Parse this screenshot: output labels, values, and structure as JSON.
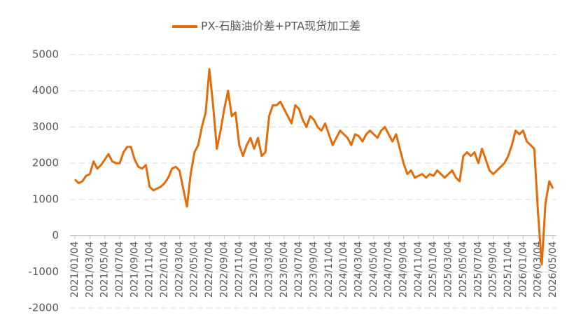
{
  "chart_data": {
    "type": "line",
    "categories": [
      "2021/01/04",
      null,
      null,
      null,
      "2021/03/04",
      null,
      null,
      null,
      "2021/05/04",
      null,
      null,
      null,
      "2021/07/04",
      null,
      null,
      null,
      "2021/09/04",
      null,
      null,
      null,
      "2021/11/04",
      null,
      null,
      null,
      "2022/01/04",
      null,
      null,
      null,
      "2022/03/04",
      null,
      null,
      null,
      "2022/05/04",
      null,
      null,
      null,
      "2022/07/04",
      null,
      null,
      null,
      "2022/09/04",
      null,
      null,
      null,
      "2022/11/04",
      null,
      null,
      null,
      "2023/01/04",
      null,
      null,
      null,
      "2023/03/04",
      null,
      null,
      null,
      "2023/05/04",
      null,
      null,
      null,
      "2023/07/04",
      null,
      null,
      null,
      "2023/09/04",
      null,
      null,
      null,
      "2023/11/04",
      null,
      null,
      null,
      "2024/01/04",
      null,
      null,
      null,
      "2024/03/04",
      null,
      null,
      null,
      "2024/05/04",
      null,
      null,
      null,
      "2024/07/04",
      null,
      null,
      null,
      "2024/09/04",
      null,
      null,
      null,
      "2024/11/04",
      null,
      null,
      null,
      "2025/01/04",
      null,
      null,
      null,
      "2025/03/04",
      null,
      null,
      null,
      "2025/05/04",
      null,
      null,
      null,
      "2025/07/04",
      null,
      null,
      null,
      "2025/09/04",
      null,
      null,
      null,
      "2025/11/04",
      null,
      null,
      null,
      "2026/01/04",
      null,
      null,
      null,
      "2026/03/04",
      null,
      null,
      null,
      "2026/05/04"
    ],
    "series": [
      {
        "name": "PX-石脑油价差+PTA现货加工差",
        "color": "#e36c09",
        "values": [
          1550,
          1450,
          1500,
          1650,
          1700,
          2050,
          1850,
          1950,
          2100,
          2250,
          2050,
          2000,
          2000,
          2300,
          2450,
          2450,
          2100,
          1900,
          1850,
          1950,
          1350,
          1250,
          1300,
          1350,
          1450,
          1600,
          1850,
          1900,
          1800,
          1300,
          800,
          1700,
          2300,
          2500,
          3000,
          3400,
          4600,
          3600,
          2400,
          2900,
          3500,
          4000,
          3300,
          3400,
          2500,
          2200,
          2500,
          2700,
          2400,
          2700,
          2200,
          2300,
          3300,
          3600,
          3600,
          3700,
          3500,
          3300,
          3100,
          3600,
          3500,
          3200,
          3000,
          3300,
          3200,
          3000,
          2900,
          3100,
          2800,
          2500,
          2700,
          2900,
          2800,
          2700,
          2500,
          2800,
          2750,
          2600,
          2800,
          2900,
          2800,
          2700,
          2900,
          3000,
          2800,
          2600,
          2800,
          2400,
          2000,
          1700,
          1800,
          1600,
          1650,
          1700,
          1600,
          1700,
          1650,
          1800,
          1700,
          1600,
          1700,
          1800,
          1600,
          1500,
          2200,
          2300,
          2200,
          2300,
          2000,
          2400,
          2100,
          1800,
          1700,
          1800,
          1900,
          2000,
          2200,
          2500,
          2900,
          2800,
          2900,
          2600,
          2500,
          2400,
          600,
          -800,
          900,
          1500,
          1300
        ]
      }
    ],
    "ylim": [
      -2000,
      5000
    ],
    "yticks": [
      -2000,
      -1000,
      0,
      1000,
      2000,
      3000,
      4000,
      5000
    ],
    "grid": true,
    "legend": "top"
  }
}
